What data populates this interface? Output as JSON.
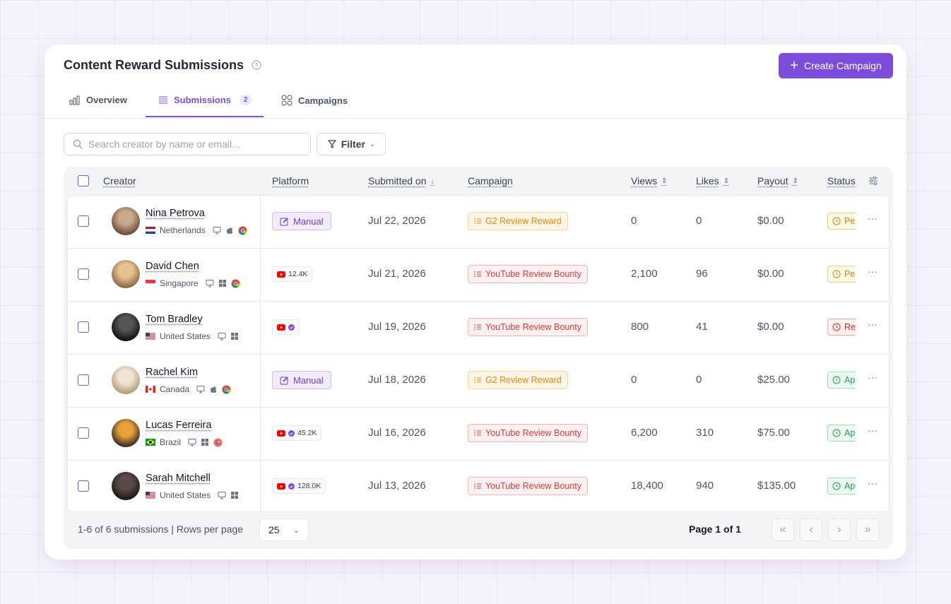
{
  "header": {
    "title": "Content Reward Submissions",
    "button": "Create Campaign"
  },
  "tabs": [
    {
      "label": "Overview"
    },
    {
      "label": "Submissions",
      "badge": "2",
      "active": true
    },
    {
      "label": "Campaigns"
    }
  ],
  "toolbar": {
    "search_placeholder": "Search creator by name or email...",
    "filter": "Filter"
  },
  "table": {
    "columns": [
      "Creator",
      "Platform",
      "Submitted on",
      "Campaign",
      "Views",
      "Likes",
      "Payout",
      "Status"
    ],
    "rows": [
      {
        "name": "Nina Petrova",
        "country": "Netherlands",
        "flag": "nl",
        "devices": [
          "desktop",
          "apple",
          "chrome"
        ],
        "platform": "manual",
        "platform_label": "Manual",
        "date": "Jul 22, 2026",
        "campaign": "G2 Review Reward",
        "campaign_tone": "orange",
        "views": "0",
        "likes": "0",
        "payout": "$0.00",
        "status": "Pending",
        "status_tone": "pending",
        "avatar": [
          "#c9a98a",
          "#6b4a3a"
        ]
      },
      {
        "name": "David Chen",
        "country": "Singapore",
        "flag": "sg",
        "devices": [
          "desktop",
          "windows",
          "chrome"
        ],
        "platform": "youtube",
        "platform_label": "12.4K",
        "date": "Jul 21, 2026",
        "campaign": "YouTube Review Bounty",
        "campaign_tone": "red",
        "views": "2,100",
        "likes": "96",
        "payout": "$0.00",
        "status": "Pending",
        "status_tone": "pending",
        "avatar": [
          "#e7c28f",
          "#8a6a45"
        ]
      },
      {
        "name": "Tom Bradley",
        "country": "United States",
        "flag": "us",
        "devices": [
          "desktop",
          "windows"
        ],
        "platform": "youtube",
        "verified": true,
        "date": "Jul 19, 2026",
        "campaign": "YouTube Review Bounty",
        "campaign_tone": "red",
        "views": "800",
        "likes": "41",
        "payout": "$0.00",
        "status": "Rejected",
        "status_tone": "rejected",
        "avatar": [
          "#555",
          "#111"
        ]
      },
      {
        "name": "Rachel Kim",
        "country": "Canada",
        "flag": "ca",
        "devices": [
          "desktop",
          "apple",
          "chrome"
        ],
        "platform": "manual",
        "platform_label": "Manual",
        "date": "Jul 18, 2026",
        "campaign": "G2 Review Reward",
        "campaign_tone": "orange",
        "views": "0",
        "likes": "0",
        "payout": "$25.00",
        "status": "Approved",
        "status_tone": "approved",
        "avatar": [
          "#efe6d8",
          "#b59a74"
        ]
      },
      {
        "name": "Lucas Ferreira",
        "country": "Brazil",
        "flag": "br",
        "devices": [
          "desktop",
          "windows",
          "firefox"
        ],
        "platform": "youtube",
        "verified": true,
        "platform_label": "45.2K",
        "date": "Jul 16, 2026",
        "campaign": "YouTube Review Bounty",
        "campaign_tone": "red",
        "views": "6,200",
        "likes": "310",
        "payout": "$75.00",
        "status": "Approved",
        "status_tone": "approved",
        "avatar": [
          "#e8a23a",
          "#3a2a22"
        ]
      },
      {
        "name": "Sarah Mitchell",
        "country": "United States",
        "flag": "us",
        "devices": [
          "desktop",
          "windows"
        ],
        "platform": "youtube",
        "verified": true,
        "platform_label": "128.0K",
        "date": "Jul 13, 2026",
        "campaign": "YouTube Review Bounty",
        "campaign_tone": "red",
        "views": "18,400",
        "likes": "940",
        "payout": "$135.00",
        "status": "Approved",
        "status_tone": "approved",
        "avatar": [
          "#5a4a48",
          "#1e1616"
        ]
      }
    ]
  },
  "footer": {
    "summary": "1-6 of 6 submissions | Rows per page",
    "rows_per_page": "25",
    "page": "Page 1 of 1"
  }
}
